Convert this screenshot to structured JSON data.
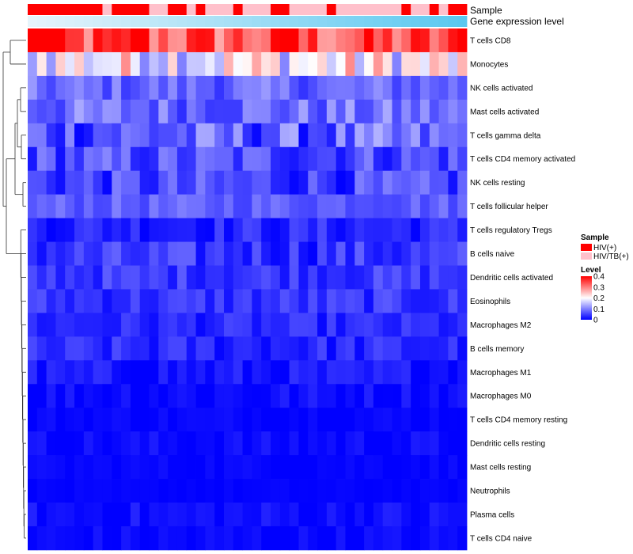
{
  "chart_data": {
    "type": "heatmap",
    "title": "",
    "n_samples": 47,
    "annotation_tracks": [
      {
        "name": "Sample",
        "type": "categorical"
      },
      {
        "name": "Gene expression level",
        "type": "gradient",
        "from": "#e6f4fb",
        "to": "#5bc8f0"
      }
    ],
    "sample_groups": [
      0,
      0,
      0,
      0,
      0,
      0,
      0,
      0,
      1,
      0,
      0,
      0,
      0,
      1,
      1,
      0,
      0,
      1,
      0,
      1,
      1,
      1,
      0,
      1,
      1,
      1,
      0,
      0,
      1,
      1,
      1,
      1,
      0,
      1,
      1,
      1,
      1,
      1,
      1,
      1,
      0,
      1,
      1,
      0,
      1,
      0,
      0
    ],
    "group_labels": [
      "HIV(+)",
      "HIV/TB(+)"
    ],
    "group_colors": [
      "#ff0000",
      "#ffc0cb"
    ],
    "rows": [
      {
        "label": "T cells CD8",
        "mean": 0.33,
        "spread": 0.08,
        "top": 0.4
      },
      {
        "label": "Monocytes",
        "mean": 0.2,
        "spread": 0.1,
        "top": 0.4
      },
      {
        "label": "NK cells activated",
        "mean": 0.08,
        "spread": 0.04,
        "top": 0.4
      },
      {
        "label": "Mast cells activated",
        "mean": 0.085,
        "spread": 0.05,
        "top": 0.4
      },
      {
        "label": "T cells gamma delta",
        "mean": 0.07,
        "spread": 0.07,
        "top": 0.4
      },
      {
        "label": "T cells CD4 memory activated",
        "mean": 0.06,
        "spread": 0.05,
        "top": 0.4
      },
      {
        "label": "NK cells resting",
        "mean": 0.05,
        "spread": 0.05,
        "top": 0.4
      },
      {
        "label": "T cells follicular helper",
        "mean": 0.075,
        "spread": 0.025,
        "top": 0.4
      },
      {
        "label": "T cells regulatory  Tregs",
        "mean": 0.03,
        "spread": 0.03,
        "top": 0.4
      },
      {
        "label": "B cells naive",
        "mean": 0.04,
        "spread": 0.04,
        "top": 0.4
      },
      {
        "label": "Dendritic cells activated",
        "mean": 0.045,
        "spread": 0.03,
        "top": 0.4
      },
      {
        "label": "Eosinophils",
        "mean": 0.04,
        "spread": 0.03,
        "top": 0.4
      },
      {
        "label": "Macrophages M2",
        "mean": 0.03,
        "spread": 0.025,
        "top": 0.4
      },
      {
        "label": "B cells memory",
        "mean": 0.03,
        "spread": 0.03,
        "top": 0.4
      },
      {
        "label": "Macrophages M1",
        "mean": 0.015,
        "spread": 0.025,
        "top": 0.4
      },
      {
        "label": "Macrophages M0",
        "mean": 0.01,
        "spread": 0.02,
        "top": 0.4
      },
      {
        "label": "T cells CD4 memory resting",
        "mean": 0.005,
        "spread": 0.01,
        "top": 0.4
      },
      {
        "label": "Dendritic cells resting",
        "mean": 0.008,
        "spread": 0.015,
        "top": 0.4
      },
      {
        "label": "Mast cells resting",
        "mean": 0.005,
        "spread": 0.008,
        "top": 0.4
      },
      {
        "label": "Neutrophils",
        "mean": 0.002,
        "spread": 0.004,
        "top": 0.4
      },
      {
        "label": "Plasma cells",
        "mean": 0.01,
        "spread": 0.02,
        "top": 0.4
      },
      {
        "label": "T cells CD4 naive",
        "mean": 0.005,
        "spread": 0.015,
        "top": 0.4
      }
    ],
    "color_scale": {
      "min": 0,
      "max": 0.4,
      "stops": [
        {
          "value": 0,
          "color": "#0000ff"
        },
        {
          "value": 0.2,
          "color": "#ffffff"
        },
        {
          "value": 0.4,
          "color": "#ff0000"
        }
      ]
    },
    "legend": {
      "sample_title": "Sample",
      "level_title": "Level",
      "ticks": [
        "0.4",
        "0.3",
        "0.2",
        "0.1",
        "0"
      ],
      "placement": "right"
    },
    "dendrogram": "left, rows clustered"
  }
}
